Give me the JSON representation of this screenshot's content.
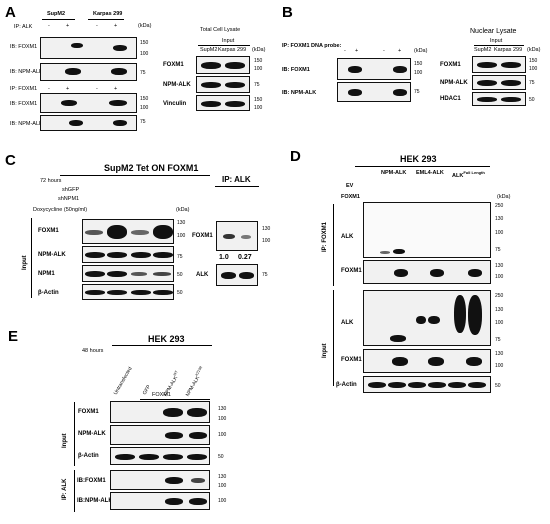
{
  "panelA": {
    "label": "A",
    "sup_m2": "SupM2",
    "karpas": "Karpas 299",
    "ip_alk": "IP: ALK",
    "ip_foxm1": "IP: FOXM1",
    "pm": [
      "-",
      "+",
      "-",
      "+"
    ],
    "ib_foxm1": "IB: FOXM1",
    "ib_npm_alk": "IB: NPM-ALK",
    "ib_foxm1_2": "IB: FOXM1",
    "ib_npm_alk_2": "IB: NPM-ALK",
    "kda": "(kDa)",
    "m150": "150",
    "m100": "100",
    "m75": "75",
    "total_lysate": "Total Cell Lysate",
    "input": "Input",
    "supm2_small": "SupM2",
    "karpas_small": "Karpas 299",
    "foxm1": "FOXM1",
    "npm_alk": "NPM-ALK",
    "vinculin": "Vinculin"
  },
  "panelB": {
    "label": "B",
    "ip_probe": "IP: FOXM1 DNA probe:",
    "pm": [
      "-",
      "+",
      "-",
      "+"
    ],
    "ib_foxm1": "IB: FOXM1",
    "ib_npm_alk": "IB: NPM-ALK",
    "kda": "(kDa)",
    "m150": "150",
    "m100": "100",
    "m75": "75",
    "nuclear_lysate": "Nuclear Lysate",
    "input": "Input",
    "supm2_small": "SupM2",
    "karpas_small": "Karpas 299",
    "foxm1": "FOXM1",
    "npm_alk": "NPM-ALK",
    "hdac1": "HDAC1",
    "m50": "50"
  },
  "panelC": {
    "label": "C",
    "title": "SupM2 Tet ON FOXM1",
    "hours": "72 hours",
    "shgfp": "shGFP",
    "shnpm1": "shNPM1",
    "dox": "Doxycycline (50ng/ml)",
    "kda": "(kDa)",
    "input": "Input",
    "foxm1": "FOXM1",
    "npm_alk": "NPM-ALK",
    "npm1": "NPM1",
    "bactin": "β-Actin",
    "m130": "130",
    "m100": "100",
    "m75": "75",
    "m50": "50",
    "ip_alk": "IP: ALK",
    "ip_foxm1": "FOXM1",
    "ip_alk_row": "ALK",
    "ratio1": "1.0",
    "ratio2": "0.27"
  },
  "panelD": {
    "label": "D",
    "title": "HEK 293",
    "npm_alk": "NPM-ALK",
    "eml4": "EML4-ALK",
    "alkfl": "ALK",
    "alkfl_sup": "Full Length",
    "ev": "EV",
    "foxm1_row": "FOXM1",
    "kda": "(kDa)",
    "ip_foxm1": "IP: FOXM1",
    "input": "Input",
    "alk": "ALK",
    "foxm1": "FOXM1",
    "bactin": "β-Actin",
    "m250": "250",
    "m130": "130",
    "m100": "100",
    "m75": "75",
    "m50": "50"
  },
  "panelE": {
    "label": "E",
    "title": "HEK 293",
    "hours": "48 hours",
    "lanes": [
      "Untransfected",
      "GFP",
      "NPM-ALK",
      "NPM-ALK"
    ],
    "sup3": "WT",
    "sup4": "K210R",
    "foxm1_group": "FOXM1",
    "input": "Input",
    "ip_alk": "IP: ALK",
    "foxm1": "FOXM1",
    "npm_alk": "NPM-ALK",
    "bactin": "β-Actin",
    "ib_foxm1": "IB:FOXM1",
    "ib_npm_alk": "IB:NPM-ALK",
    "m130": "130",
    "m100": "100",
    "m75": "75",
    "m50": "50"
  }
}
